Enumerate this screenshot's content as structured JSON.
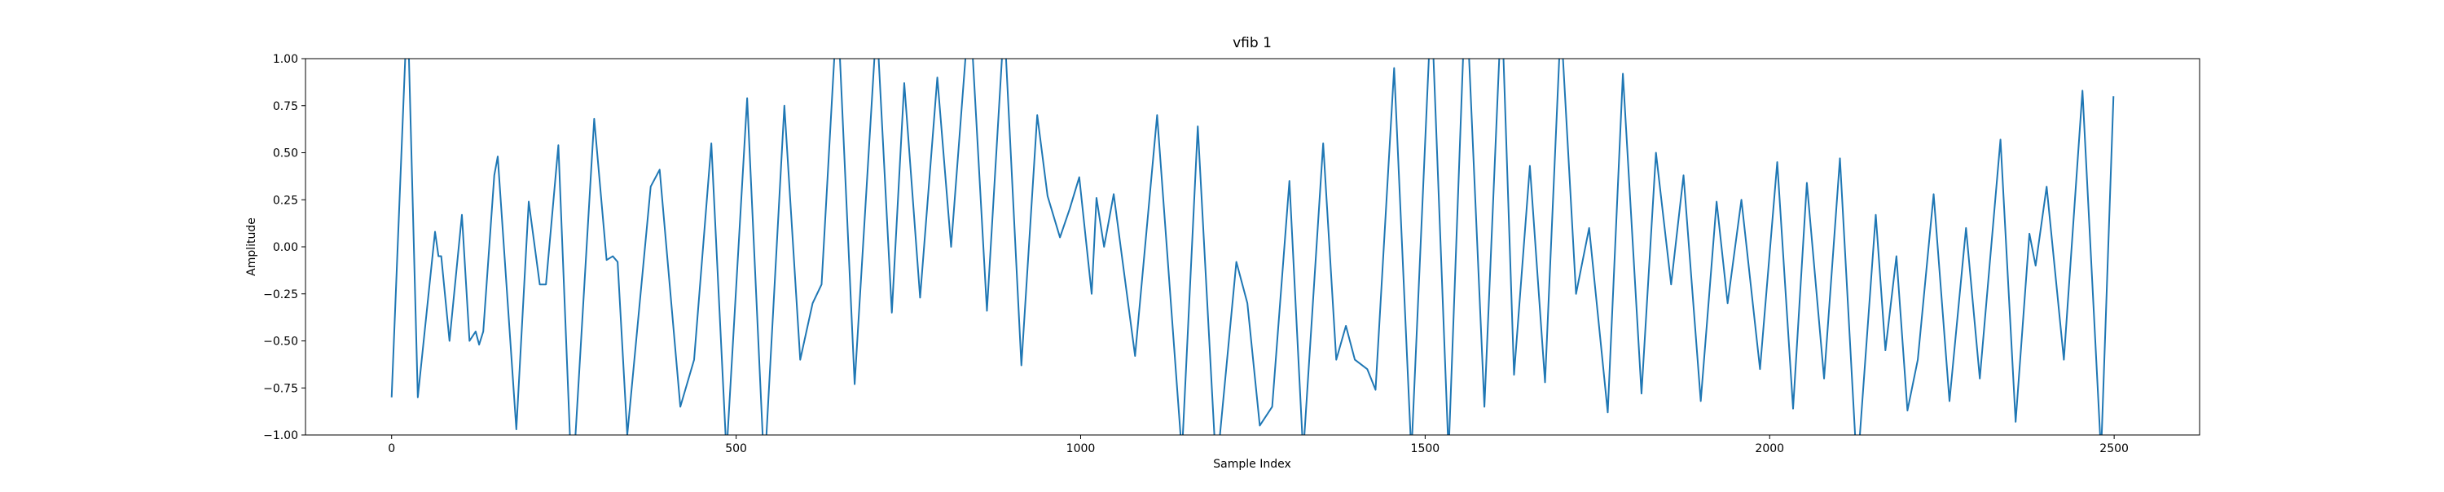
{
  "chart_data": {
    "type": "line",
    "title": "vfib 1",
    "x_label": "Sample Index",
    "y_label": "Amplitude",
    "xlim": [
      -125,
      2624
    ],
    "ylim": [
      -1,
      1
    ],
    "xticks": [
      0,
      500,
      1000,
      1500,
      2000,
      2500
    ],
    "yticks": [
      {
        "value": -1,
        "label": "−1.00"
      },
      {
        "value": -0.75,
        "label": "−0.75"
      },
      {
        "value": -0.5,
        "label": "−0.50"
      },
      {
        "value": -0.25,
        "label": "−0.25"
      },
      {
        "value": 0,
        "label": "0.00"
      },
      {
        "value": 0.25,
        "label": "0.25"
      },
      {
        "value": 0.5,
        "label": "0.50"
      },
      {
        "value": 0.75,
        "label": "0.75"
      },
      {
        "value": 1,
        "label": "1.00"
      }
    ],
    "grid": false,
    "x": [
      0,
      23,
      38,
      63,
      68,
      72,
      84,
      102,
      113,
      122,
      127,
      133,
      149,
      154,
      181,
      199,
      215,
      224,
      242,
      262,
      294,
      312,
      321,
      328,
      342,
      376,
      389,
      419,
      439,
      464,
      486,
      516,
      541,
      570,
      593,
      611,
      624,
      647,
      672,
      704,
      726,
      744,
      767,
      792,
      812,
      839,
      864,
      889,
      914,
      937,
      952,
      970,
      984,
      998,
      1016,
      1023,
      1034,
      1048,
      1079,
      1111,
      1147,
      1170,
      1197,
      1226,
      1242,
      1260,
      1278,
      1303,
      1323,
      1352,
      1371,
      1385,
      1398,
      1416,
      1428,
      1455,
      1480,
      1509,
      1534,
      1559,
      1586,
      1611,
      1629,
      1652,
      1674,
      1697,
      1719,
      1738,
      1765,
      1787,
      1814,
      1835,
      1857,
      1875,
      1900,
      1923,
      1939,
      1959,
      1986,
      2011,
      2034,
      2054,
      2079,
      2102,
      2127,
      2154,
      2168,
      2184,
      2200,
      2215,
      2238,
      2261,
      2285,
      2305,
      2335,
      2357,
      2377,
      2386,
      2402,
      2427,
      2454,
      2481,
      2499
    ],
    "series": [
      {
        "color": "#1f77b4",
        "values": [
          -0.8,
          1.3,
          -0.8,
          0.08,
          -0.05,
          -0.05,
          -0.5,
          0.17,
          -0.5,
          -0.45,
          -0.52,
          -0.45,
          0.38,
          0.48,
          -0.97,
          0.24,
          -0.2,
          -0.2,
          0.54,
          -1.3,
          0.68,
          -0.07,
          -0.05,
          -0.08,
          -1.0,
          0.32,
          0.41,
          -0.85,
          -0.6,
          0.55,
          -1.1,
          0.79,
          -1.2,
          0.75,
          -0.6,
          -0.3,
          -0.2,
          1.3,
          -0.73,
          1.2,
          -0.35,
          0.87,
          -0.27,
          0.9,
          0.0,
          1.3,
          -0.34,
          1.2,
          -0.63,
          0.7,
          0.27,
          0.05,
          0.2,
          0.37,
          -0.25,
          0.26,
          0.0,
          0.28,
          -0.58,
          0.7,
          -1.1,
          0.64,
          -1.2,
          -0.08,
          -0.3,
          -0.95,
          -0.85,
          0.35,
          -1.1,
          0.55,
          -0.6,
          -0.42,
          -0.6,
          -0.65,
          -0.76,
          0.95,
          -1.1,
          1.3,
          -1.1,
          1.4,
          -0.85,
          1.3,
          -0.68,
          0.43,
          -0.72,
          1.2,
          -0.25,
          0.1,
          -0.88,
          0.92,
          -0.78,
          0.5,
          -0.2,
          0.38,
          -0.82,
          0.24,
          -0.3,
          0.25,
          -0.65,
          0.45,
          -0.86,
          0.34,
          -0.7,
          0.47,
          -1.2,
          0.17,
          -0.55,
          -0.05,
          -0.87,
          -0.6,
          0.28,
          -0.82,
          0.1,
          -0.7,
          0.57,
          -0.93,
          0.07,
          -0.1,
          0.32,
          -0.6,
          0.83,
          -1.1,
          0.8
        ]
      }
    ]
  }
}
